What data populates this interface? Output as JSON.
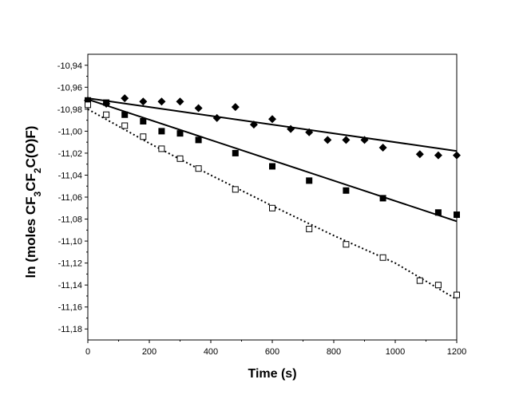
{
  "chart_data": {
    "type": "scatter",
    "xlabel": "Time (s)",
    "ylabel": {
      "parts": [
        {
          "text": "ln (moles CF",
          "sub": false
        },
        {
          "text": "3",
          "sub": true
        },
        {
          "text": "CF",
          "sub": false
        },
        {
          "text": "2",
          "sub": true
        },
        {
          "text": "C(O)F)",
          "sub": false
        }
      ]
    },
    "xlim": [
      0,
      1200
    ],
    "ylim": [
      -11.19,
      -10.93
    ],
    "x_ticks": [
      0,
      200,
      400,
      600,
      800,
      1000,
      1200
    ],
    "x_tick_labels": [
      "0",
      "200",
      "400",
      "600",
      "800",
      "1000",
      "1200"
    ],
    "y_ticks": [
      -10.94,
      -10.96,
      -10.98,
      -11.0,
      -11.02,
      -11.04,
      -11.06,
      -11.08,
      -11.1,
      -11.12,
      -11.14,
      -11.16,
      -11.18
    ],
    "y_tick_labels": [
      "-10,94",
      "-10,96",
      "-10,98",
      "-11,00",
      "-11,02",
      "-11,04",
      "-11,06",
      "-11,08",
      "-11,10",
      "-11,12",
      "-11,14",
      "-11,16",
      "-11,18"
    ],
    "grid": false,
    "series": [
      {
        "marker": "diamond-filled",
        "x": [
          0,
          60,
          120,
          180,
          240,
          300,
          360,
          420,
          480,
          540,
          600,
          660,
          720,
          780,
          840,
          900,
          960,
          1080,
          1140,
          1200
        ],
        "y": [
          -10.972,
          -10.975,
          -10.97,
          -10.973,
          -10.973,
          -10.973,
          -10.979,
          -10.988,
          -10.978,
          -10.994,
          -10.989,
          -10.998,
          -11.001,
          -11.008,
          -11.008,
          -11.008,
          -11.015,
          -11.021,
          -11.022,
          -11.022
        ],
        "fit": {
          "style": "solid",
          "x": [
            0,
            1200
          ],
          "y": [
            -10.97,
            -11.018
          ]
        }
      },
      {
        "marker": "square-filled",
        "x": [
          0,
          60,
          120,
          180,
          240,
          300,
          360,
          480,
          600,
          720,
          840,
          960,
          1140,
          1200
        ],
        "y": [
          -10.972,
          -10.974,
          -10.985,
          -10.991,
          -11.0,
          -11.002,
          -11.008,
          -11.02,
          -11.032,
          -11.045,
          -11.054,
          -11.061,
          -11.074,
          -11.076
        ],
        "fit": {
          "style": "solid",
          "x": [
            0,
            1200
          ],
          "y": [
            -10.971,
            -11.082
          ]
        }
      },
      {
        "marker": "square-open",
        "x": [
          0,
          60,
          120,
          180,
          240,
          300,
          360,
          480,
          600,
          720,
          840,
          960,
          1080,
          1140,
          1200
        ],
        "y": [
          -10.976,
          -10.985,
          -10.995,
          -11.005,
          -11.016,
          -11.025,
          -11.034,
          -11.053,
          -11.07,
          -11.089,
          -11.103,
          -11.115,
          -11.136,
          -11.14,
          -11.149
        ],
        "fit": {
          "style": "dotted",
          "x": [
            0,
            200,
            400,
            600,
            800,
            1000,
            1200
          ],
          "y": [
            -10.98,
            -11.011,
            -11.04,
            -11.068,
            -11.095,
            -11.12,
            -11.153
          ]
        }
      }
    ]
  }
}
